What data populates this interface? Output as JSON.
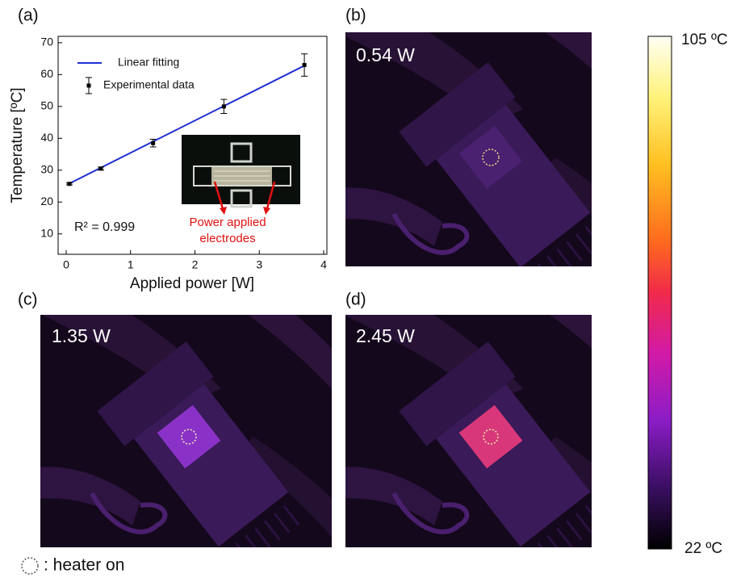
{
  "chart_data": {
    "type": "scatter",
    "panel_label": "(a)",
    "x_label": "Applied power [W]",
    "y_label": "Temperature [ºC]",
    "xlim": [
      -0.125,
      4.05
    ],
    "ylim": [
      3.6,
      72
    ],
    "xticks": [
      0,
      1,
      2,
      3,
      4
    ],
    "yticks": [
      10,
      20,
      30,
      40,
      50,
      60,
      70
    ],
    "series": [
      {
        "name": "Linear fitting",
        "type": "line",
        "color": "#1f2fd6",
        "x": [
          0.05,
          3.7
        ],
        "values": [
          25.8,
          62.8
        ]
      },
      {
        "name": "Experimental data",
        "type": "scatter",
        "color": "#000000",
        "x": [
          0.05,
          0.54,
          1.35,
          2.45,
          3.7
        ],
        "values": [
          25.7,
          30.5,
          38.5,
          50,
          63
        ],
        "errors": [
          0.3,
          0.5,
          1.2,
          2.2,
          3.5
        ]
      }
    ],
    "annotation": "R² = 0.999",
    "inset_caption": [
      "Power applied",
      "electrodes"
    ]
  },
  "panels": [
    {
      "label": "(b)",
      "power": "0.54 W"
    },
    {
      "label": "(c)",
      "power": "1.35 W"
    },
    {
      "label": "(d)",
      "power": "2.45 W"
    }
  ],
  "colorbar": {
    "max_label": "105 ºC",
    "min_label": "22 ºC"
  },
  "footnote": ": heater on"
}
